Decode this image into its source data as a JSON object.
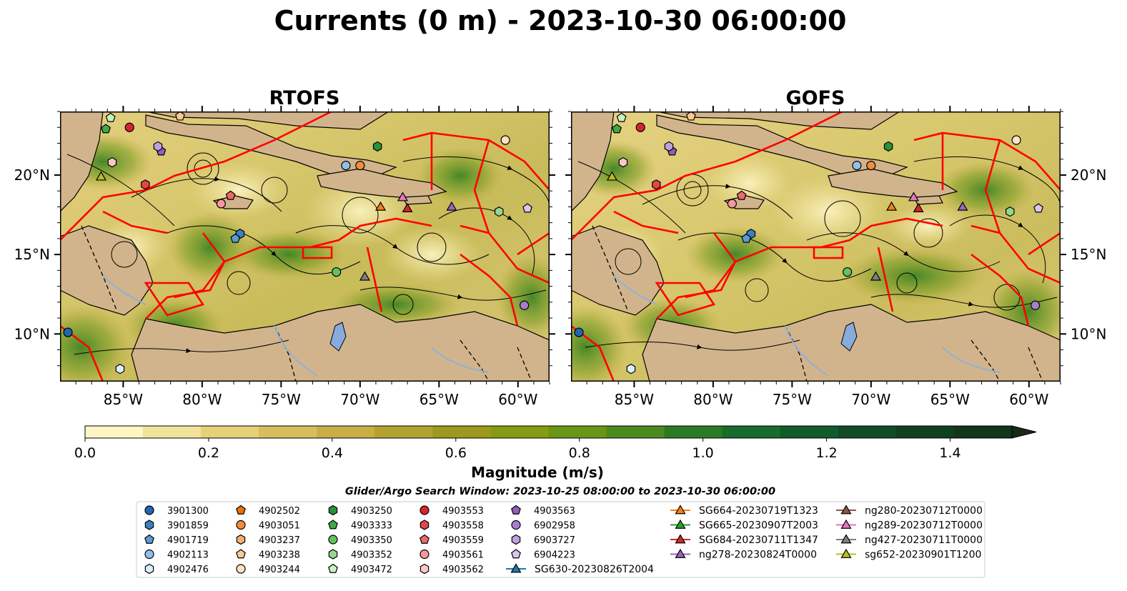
{
  "figure": {
    "title": "Currents (0 m) - 2023-10-30 06:00:00",
    "panels": [
      {
        "id": "rtofs",
        "title": "RTOFS"
      },
      {
        "id": "gofs",
        "title": "GOFS"
      }
    ],
    "lon_labels": [
      "85°W",
      "80°W",
      "75°W",
      "70°W",
      "65°W",
      "60°W"
    ],
    "lat_labels": [
      "20°N",
      "15°N",
      "10°N"
    ],
    "lon_values": [
      -85,
      -80,
      -75,
      -70,
      -65,
      -60
    ],
    "lat_values": [
      20,
      15,
      10
    ],
    "extent": {
      "lon": [
        -89,
        -58
      ],
      "lat": [
        7,
        24
      ]
    },
    "colorbar": {
      "label": "Magnitude (m/s)",
      "ticks": [
        "0.0",
        "0.2",
        "0.4",
        "0.6",
        "0.8",
        "1.0",
        "1.2",
        "1.4"
      ],
      "tick_values": [
        0.0,
        0.2,
        0.4,
        0.6,
        0.8,
        1.0,
        1.2,
        1.4
      ],
      "range": [
        0.0,
        1.5
      ],
      "extend": "max",
      "colors": [
        "#fcf6c2",
        "#f2e29a",
        "#e6d079",
        "#d9bd5d",
        "#c9ad46",
        "#b2a230",
        "#9b9a1e",
        "#839c13",
        "#6a9516",
        "#4c8a1e",
        "#2c7a24",
        "#196a2d",
        "#115b2c",
        "#0f4c26",
        "#10401f",
        "#13351b",
        "#172a17"
      ]
    },
    "subtitle": "Glider/Argo Search Window: 2023-10-25 08:00:00 to 2023-10-30 06:00:00"
  },
  "legend": {
    "items": [
      {
        "label": "3901300",
        "marker": "circle",
        "color": "#1f67b1"
      },
      {
        "label": "3901859",
        "marker": "hexagon",
        "color": "#3b80c4"
      },
      {
        "label": "4901719",
        "marker": "pentagon",
        "color": "#5b9bd5"
      },
      {
        "label": "4902113",
        "marker": "circle",
        "color": "#8fc1ea"
      },
      {
        "label": "4902476",
        "marker": "hexagon",
        "color": "#d8eefc"
      },
      {
        "label": "4902502",
        "marker": "pentagon",
        "color": "#e8730d"
      },
      {
        "label": "4903051",
        "marker": "circle",
        "color": "#f28e3a"
      },
      {
        "label": "4903237",
        "marker": "hexagon",
        "color": "#f7ad6c"
      },
      {
        "label": "4903238",
        "marker": "pentagon",
        "color": "#fbc894"
      },
      {
        "label": "4903244",
        "marker": "circle",
        "color": "#fde2c4"
      },
      {
        "label": "4903250",
        "marker": "hexagon",
        "color": "#2a9137"
      },
      {
        "label": "4903333",
        "marker": "pentagon",
        "color": "#42a84c"
      },
      {
        "label": "4903350",
        "marker": "circle",
        "color": "#62c25e"
      },
      {
        "label": "4903352",
        "marker": "hexagon",
        "color": "#95d88c"
      },
      {
        "label": "4903472",
        "marker": "pentagon",
        "color": "#cbf1c2"
      },
      {
        "label": "4903553",
        "marker": "circle",
        "color": "#d3262a"
      },
      {
        "label": "4903558",
        "marker": "hexagon",
        "color": "#e0474a"
      },
      {
        "label": "4903559",
        "marker": "pentagon",
        "color": "#ea6a6a"
      },
      {
        "label": "4903561",
        "marker": "circle",
        "color": "#f4999a"
      },
      {
        "label": "4903562",
        "marker": "hexagon",
        "color": "#fbc7c6"
      },
      {
        "label": "4903563",
        "marker": "pentagon",
        "color": "#8f5fb9"
      },
      {
        "label": "6902958",
        "marker": "circle",
        "color": "#a67fcc"
      },
      {
        "label": "6903727",
        "marker": "hexagon",
        "color": "#bfa1dd"
      },
      {
        "label": "6904223",
        "marker": "pentagon",
        "color": "#d9c6ec"
      },
      {
        "label": "SG630-20230826T2004",
        "marker": "triangle-line",
        "color": "#1f77b4"
      },
      {
        "label": "SG664-20230719T1323",
        "marker": "triangle-line",
        "color": "#ff7f0e"
      },
      {
        "label": "SG665-20230907T2003",
        "marker": "triangle-line",
        "color": "#2ca02c"
      },
      {
        "label": "SG684-20230711T1347",
        "marker": "triangle-line",
        "color": "#d62728"
      },
      {
        "label": "ng278-20230824T0000",
        "marker": "triangle-line",
        "color": "#9467bd"
      },
      {
        "label": "ng280-20230712T0000",
        "marker": "triangle-line",
        "color": "#8c564b"
      },
      {
        "label": "ng289-20230712T0000",
        "marker": "triangle-line",
        "color": "#e377c2"
      },
      {
        "label": "ng427-20230711T0000",
        "marker": "triangle-line",
        "color": "#7f7f7f"
      },
      {
        "label": "sg652-20230901T1200",
        "marker": "triangle-line",
        "color": "#bcbd22"
      }
    ]
  },
  "map_markers": [
    {
      "id": "4903553",
      "lon": -84.6,
      "lat": 23.0
    },
    {
      "id": "4903333",
      "lon": -86.1,
      "lat": 22.9
    },
    {
      "id": "4903472",
      "lon": -85.8,
      "lat": 23.6
    },
    {
      "id": "4903238",
      "lon": -81.4,
      "lat": 23.7
    },
    {
      "id": "4903563",
      "lon": -82.6,
      "lat": 21.5
    },
    {
      "id": "6903727",
      "lon": -82.8,
      "lat": 21.8
    },
    {
      "id": "4903562",
      "lon": -85.7,
      "lat": 20.8
    },
    {
      "id": "sg652-20230901T1200",
      "lon": -86.4,
      "lat": 19.9
    },
    {
      "id": "4903558",
      "lon": -83.6,
      "lat": 19.4
    },
    {
      "id": "4903561",
      "lon": -78.8,
      "lat": 18.2
    },
    {
      "id": "4903559",
      "lon": -78.2,
      "lat": 18.7
    },
    {
      "id": "3901859",
      "lon": -77.6,
      "lat": 16.3
    },
    {
      "id": "4901719",
      "lon": -77.9,
      "lat": 16.0
    },
    {
      "id": "4902113",
      "lon": -70.9,
      "lat": 20.6
    },
    {
      "id": "4903051",
      "lon": -70.0,
      "lat": 20.6
    },
    {
      "id": "4903250",
      "lon": -68.9,
      "lat": 21.8
    },
    {
      "id": "4903244",
      "lon": -60.8,
      "lat": 22.2
    },
    {
      "id": "SG664-20230719T1323",
      "lon": -68.7,
      "lat": 18.0
    },
    {
      "id": "ng289-20230712T0000",
      "lon": -67.3,
      "lat": 18.6
    },
    {
      "id": "SG684-20230711T1347",
      "lon": -67.0,
      "lat": 17.9
    },
    {
      "id": "ng278-20230824T0000",
      "lon": -64.2,
      "lat": 18.0
    },
    {
      "id": "4903352",
      "lon": -61.2,
      "lat": 17.7
    },
    {
      "id": "6904223",
      "lon": -59.4,
      "lat": 17.9
    },
    {
      "id": "4903350",
      "lon": -71.5,
      "lat": 13.9
    },
    {
      "id": "ng427-20230711T0000",
      "lon": -69.7,
      "lat": 13.6
    },
    {
      "id": "6902958",
      "lon": -59.6,
      "lat": 11.8
    },
    {
      "id": "3901300",
      "lon": -88.5,
      "lat": 10.1
    },
    {
      "id": "4902476",
      "lon": -85.2,
      "lat": 7.8
    }
  ]
}
